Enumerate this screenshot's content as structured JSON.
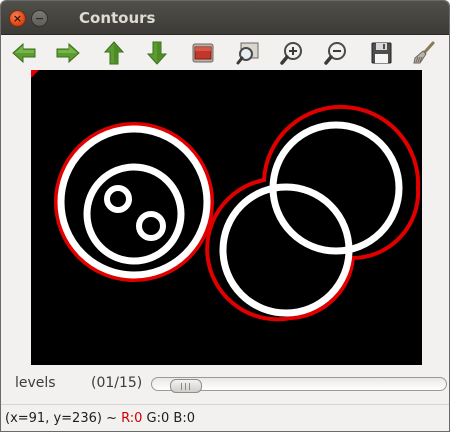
{
  "window": {
    "title": "Contours",
    "close_glyph": "×",
    "minimize_glyph": "−"
  },
  "toolbar": {
    "buttons": [
      {
        "name": "arrow-left-icon",
        "color": "#5a9c2f"
      },
      {
        "name": "arrow-right-icon",
        "color": "#5a9c2f"
      },
      {
        "name": "arrow-up-icon",
        "color": "#5a9c2f"
      },
      {
        "name": "arrow-down-icon",
        "color": "#5a9c2f"
      },
      {
        "name": "fit-window-icon"
      },
      {
        "name": "zoom-region-icon"
      },
      {
        "name": "zoom-in-icon"
      },
      {
        "name": "zoom-out-icon"
      },
      {
        "name": "save-icon"
      },
      {
        "name": "properties-brush-icon"
      }
    ]
  },
  "image": {
    "background": "#000000",
    "shape_color": "#ffffff",
    "contour_color": "#e00000"
  },
  "levels": {
    "label": "levels",
    "value_text": "(01/15)",
    "current": 1,
    "max": 15
  },
  "status": {
    "coords": "(x=91, y=236) ~",
    "r": "R:0",
    "g": "G:0",
    "b": "B:0"
  }
}
